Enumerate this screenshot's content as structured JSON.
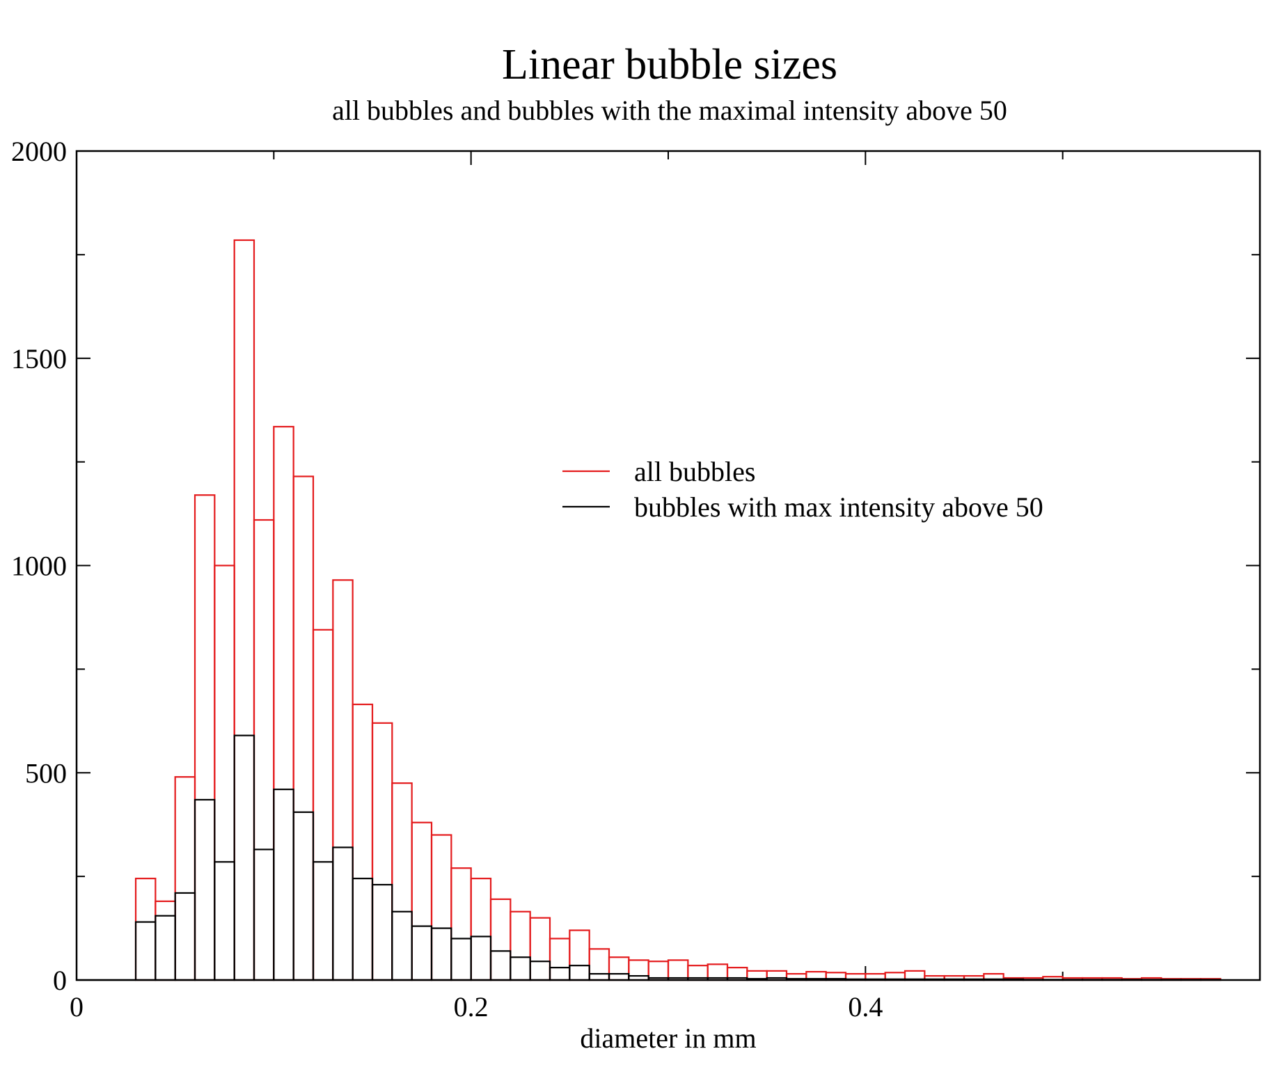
{
  "chart_data": {
    "type": "bar",
    "title": "Linear bubble sizes",
    "subtitle": "all bubbles and bubbles with the maximal intensity above 50",
    "xlabel": "diameter in mm",
    "ylabel": "",
    "xlim": [
      0,
      0.6
    ],
    "ylim": [
      0,
      2000
    ],
    "x_major_ticks": [
      0,
      0.2,
      0.4
    ],
    "x_tick_labels": [
      "0",
      "0.2",
      "0.4"
    ],
    "y_major_ticks": [
      0,
      500,
      1000,
      1500,
      2000
    ],
    "y_tick_labels": [
      "0",
      "500",
      "1000",
      "1500",
      "2000"
    ],
    "grid": false,
    "legend_position": "upper-right",
    "bin_start": 0.03,
    "bin_width": 0.01,
    "series": [
      {
        "name": "all bubbles",
        "color": "#e41a1c",
        "values": [
          245,
          190,
          490,
          1170,
          1000,
          1785,
          1110,
          1335,
          1215,
          845,
          965,
          665,
          620,
          475,
          380,
          350,
          270,
          245,
          195,
          165,
          150,
          100,
          120,
          75,
          55,
          48,
          45,
          48,
          35,
          38,
          30,
          22,
          22,
          15,
          20,
          18,
          15,
          15,
          18,
          22,
          10,
          10,
          10,
          15,
          5,
          5,
          8,
          5,
          5,
          5,
          3,
          5,
          3,
          3,
          3
        ]
      },
      {
        "name": "bubbles with max intensity above 50",
        "color": "#000000",
        "values": [
          140,
          155,
          210,
          435,
          285,
          590,
          315,
          460,
          405,
          285,
          320,
          245,
          230,
          165,
          130,
          125,
          100,
          105,
          70,
          55,
          45,
          30,
          35,
          15,
          15,
          10,
          5,
          5,
          5,
          5,
          5,
          3,
          5,
          3,
          3,
          3,
          2,
          2,
          2,
          2,
          2,
          2,
          2,
          2,
          2,
          1,
          1,
          1,
          1,
          1,
          1,
          1,
          1,
          1,
          1
        ]
      }
    ]
  }
}
